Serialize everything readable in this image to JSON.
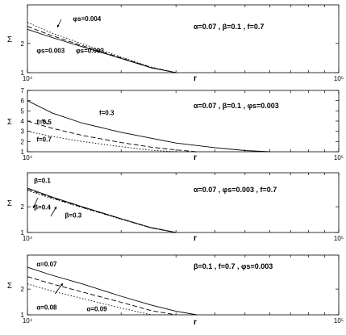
{
  "chart_data": [
    {
      "type": "line",
      "xlabel": "r",
      "ylabel": "Σ",
      "xscale": "log",
      "yscale": "log",
      "xlim": [
        10000,
        100000
      ],
      "ylim": [
        1,
        5
      ],
      "x_ticks": [
        "10⁴",
        "10⁵"
      ],
      "y_ticks": [
        "1",
        "2"
      ],
      "params": "α=0.07 , β=0.1 , f=0.7",
      "series": [
        {
          "name": "φs=0.002",
          "style": "solid",
          "x": [
            10000,
            12000,
            15000,
            20000,
            25000,
            30000
          ],
          "y": [
            2.8,
            2.3,
            1.85,
            1.4,
            1.12,
            1.0
          ]
        },
        {
          "name": "φs=0.003",
          "style": "dashed",
          "x": [
            10000,
            12000,
            15000,
            20000,
            25000,
            30000
          ],
          "y": [
            3.0,
            2.4,
            1.9,
            1.42,
            1.13,
            1.0
          ]
        },
        {
          "name": "φs=0.004",
          "style": "dotted",
          "x": [
            10000,
            12000,
            15000,
            20000,
            25000,
            30000
          ],
          "y": [
            3.3,
            2.55,
            1.98,
            1.45,
            1.14,
            1.0
          ]
        }
      ],
      "labels": [
        {
          "text": "φs=0.004",
          "x": 14000,
          "y": 3.4
        },
        {
          "text": "φs=0.003",
          "x": 10700,
          "y": 1.6
        },
        {
          "text": "φs=0.002",
          "x": 14300,
          "y": 1.6
        }
      ]
    },
    {
      "type": "line",
      "xlabel": "r",
      "ylabel": "Σ",
      "xscale": "log",
      "yscale": "linear",
      "xlim": [
        10000,
        100000
      ],
      "ylim": [
        1,
        7
      ],
      "x_ticks": [
        "10⁴",
        "10⁵"
      ],
      "y_ticks": [
        "1",
        "2",
        "3",
        "4",
        "5",
        "6",
        "7"
      ],
      "params": "α=0.07 , β=0.1 , φs=0.003",
      "series": [
        {
          "name": "f=0.3",
          "style": "solid",
          "x": [
            10000,
            12000,
            15000,
            20000,
            30000,
            40000,
            50000,
            60000
          ],
          "y": [
            6.0,
            4.8,
            3.8,
            2.9,
            1.85,
            1.4,
            1.12,
            1.0
          ]
        },
        {
          "name": "f=0.5",
          "style": "dashed",
          "x": [
            10000,
            12000,
            15000,
            20000,
            25000,
            30000,
            35000
          ],
          "y": [
            4.0,
            3.3,
            2.6,
            1.9,
            1.45,
            1.18,
            1.0
          ]
        },
        {
          "name": "f=0.7",
          "style": "dotted",
          "x": [
            10000,
            12000,
            15000,
            20000,
            25000,
            30000
          ],
          "y": [
            3.0,
            2.5,
            2.0,
            1.5,
            1.15,
            1.0
          ]
        }
      ],
      "labels": [
        {
          "text": "f=0.3",
          "x": 17000,
          "y": 4.6
        },
        {
          "text": "f=0.5",
          "x": 10700,
          "y": 3.7
        },
        {
          "text": "f=0.7",
          "x": 10700,
          "y": 2.0
        }
      ]
    },
    {
      "type": "line",
      "xlabel": "r",
      "ylabel": "Σ",
      "xscale": "log",
      "yscale": "log",
      "xlim": [
        10000,
        100000
      ],
      "ylim": [
        1,
        5
      ],
      "x_ticks": [
        "10⁴",
        "10⁵"
      ],
      "y_ticks": [
        "1",
        "2"
      ],
      "params": "α=0.07 , φs=0.003 , f=0.7",
      "series": [
        {
          "name": "β=0.1",
          "style": "solid",
          "x": [
            10000,
            12000,
            15000,
            20000,
            25000,
            30000
          ],
          "y": [
            3.3,
            2.6,
            2.0,
            1.45,
            1.14,
            1.0
          ]
        },
        {
          "name": "β=0.4",
          "style": "dashed",
          "x": [
            10000,
            12000,
            15000,
            20000,
            25000,
            30000
          ],
          "y": [
            3.2,
            2.55,
            1.97,
            1.44,
            1.13,
            1.0
          ]
        },
        {
          "name": "β=0.3",
          "style": "dotted",
          "x": [
            10000,
            12000,
            15000,
            20000,
            25000,
            30000
          ],
          "y": [
            3.1,
            2.5,
            1.95,
            1.43,
            1.13,
            1.0
          ]
        }
      ],
      "labels": [
        {
          "text": "β=0.1",
          "x": 10500,
          "y": 3.8
        },
        {
          "text": "β=0.4",
          "x": 10500,
          "y": 1.85
        },
        {
          "text": "β=0.3",
          "x": 13200,
          "y": 1.5
        }
      ]
    },
    {
      "type": "line",
      "xlabel": "r",
      "ylabel": "Σ",
      "xscale": "log",
      "yscale": "log",
      "xlim": [
        10000,
        100000
      ],
      "ylim": [
        1,
        5
      ],
      "x_ticks": [
        "10⁴",
        "10⁵"
      ],
      "y_ticks": [
        "1",
        "2"
      ],
      "params": "β=0.1 , f=0.7 , φs=0.003",
      "series": [
        {
          "name": "α=0.07",
          "style": "solid",
          "x": [
            10000,
            12000,
            15000,
            20000,
            25000,
            30000,
            35000
          ],
          "y": [
            3.6,
            2.9,
            2.3,
            1.65,
            1.3,
            1.1,
            1.0
          ]
        },
        {
          "name": "α=0.08",
          "style": "dashed",
          "x": [
            10000,
            12000,
            15000,
            20000,
            25000,
            30000
          ],
          "y": [
            2.8,
            2.3,
            1.85,
            1.4,
            1.12,
            1.0
          ]
        },
        {
          "name": "α=0.09",
          "style": "dotted",
          "x": [
            10000,
            12000,
            15000,
            20000,
            25000
          ],
          "y": [
            2.3,
            1.9,
            1.55,
            1.2,
            1.0
          ]
        }
      ],
      "labels": [
        {
          "text": "α=0.07",
          "x": 10700,
          "y": 3.7
        },
        {
          "text": "α=0.08",
          "x": 10700,
          "y": 1.15
        },
        {
          "text": "α=0.09",
          "x": 15500,
          "y": 1.1
        }
      ]
    }
  ]
}
